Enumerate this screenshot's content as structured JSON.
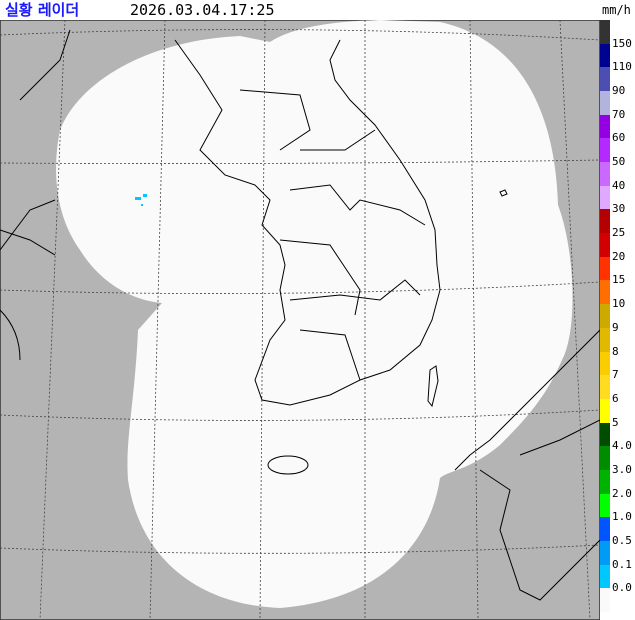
{
  "header": {
    "title": "실황 레이더",
    "timestamp": "2026.03.04.17:25"
  },
  "legend": {
    "unit": "mm/h",
    "colors": [
      "#333333",
      "#000390",
      "#4c4eb1",
      "#b3b4de",
      "#9300e4",
      "#b329ff",
      "#c969ff",
      "#e0a9ff",
      "#b40000",
      "#d20000",
      "#ff3200",
      "#ff6e00",
      "#ccaa00",
      "#e0b900",
      "#f9cd00",
      "#ffdc1f",
      "#ffff00",
      "#004c00",
      "#008c00",
      "#00b300",
      "#00ff00",
      "#0055ff",
      "#009bf5",
      "#00c8ff",
      "#fafafa"
    ],
    "labels": [
      "150",
      "110",
      "90",
      "70",
      "60",
      "50",
      "40",
      "30",
      "25",
      "20",
      "15",
      "10",
      "9",
      "8",
      "7",
      "6",
      "5",
      "4.0",
      "3.0",
      "2.0",
      "1.0",
      "0.5",
      "0.1",
      "0.0"
    ]
  },
  "map": {
    "background": "#b4b4b4",
    "coverage": "#fafafa",
    "coastline": "#000000",
    "echo_color": "#00c8ff"
  }
}
